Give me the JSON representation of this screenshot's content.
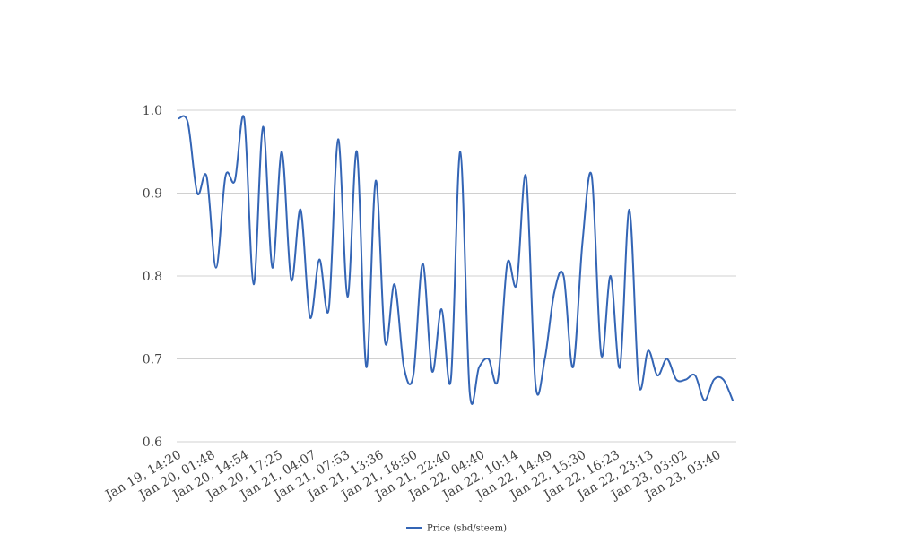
{
  "chart_data": {
    "type": "line",
    "title": "",
    "xlabel": "",
    "ylabel": "",
    "ylim": [
      0.6,
      1.0
    ],
    "yticks": [
      "0.6",
      "0.7",
      "0.8",
      "0.9",
      "1.0"
    ],
    "grid": true,
    "legend_position": "bottom",
    "xticks": [
      "Jan 19, 14:20",
      "Jan 20, 01:48",
      "Jan 20, 14:54",
      "Jan 20, 17:25",
      "Jan 21, 04:07",
      "Jan 21, 07:53",
      "Jan 21, 13:36",
      "Jan 21, 18:50",
      "Jan 21, 22:40",
      "Jan 22, 04:40",
      "Jan 22, 10:14",
      "Jan 22, 14:49",
      "Jan 22, 15:30",
      "Jan 22, 16:23",
      "Jan 22, 23:13",
      "Jan 23, 03:02",
      "Jan 23, 03:40"
    ],
    "series": [
      {
        "name": "Price (sbd/steem)",
        "color": "#3465b5",
        "values": [
          0.99,
          0.985,
          0.9,
          0.92,
          0.81,
          0.92,
          0.915,
          0.99,
          0.79,
          0.98,
          0.81,
          0.95,
          0.795,
          0.88,
          0.75,
          0.82,
          0.76,
          0.965,
          0.775,
          0.95,
          0.69,
          0.915,
          0.72,
          0.79,
          0.69,
          0.68,
          0.815,
          0.685,
          0.76,
          0.675,
          0.95,
          0.66,
          0.69,
          0.7,
          0.675,
          0.815,
          0.79,
          0.92,
          0.67,
          0.7,
          0.78,
          0.8,
          0.69,
          0.84,
          0.92,
          0.705,
          0.8,
          0.69,
          0.88,
          0.67,
          0.71,
          0.68,
          0.7,
          0.675,
          0.675,
          0.68,
          0.65,
          0.675,
          0.675,
          0.65
        ]
      }
    ]
  }
}
